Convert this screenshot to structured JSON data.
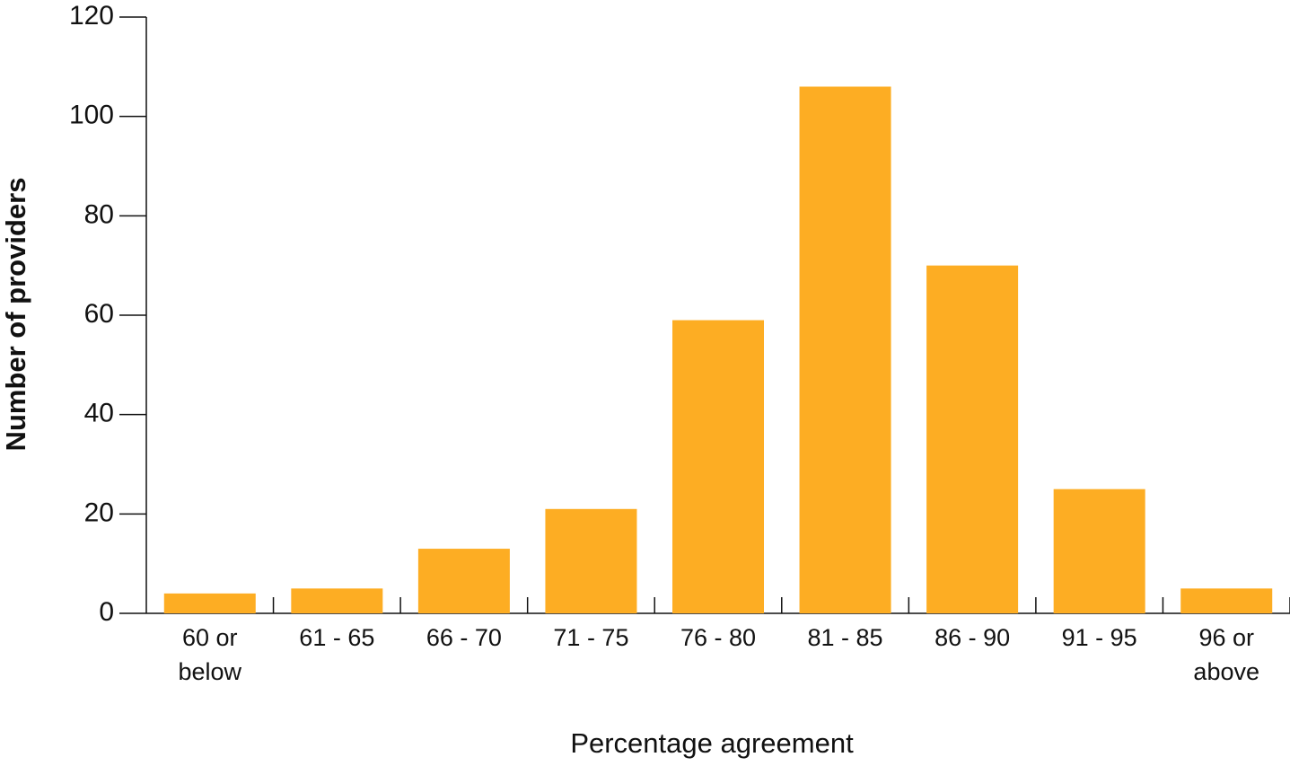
{
  "chart_data": {
    "type": "bar",
    "x_label": "Percentage agreement",
    "y_label": "Number of providers",
    "categories": [
      "60 or below",
      "61 - 65",
      "66 - 70",
      "71 - 75",
      "76 - 80",
      "81 - 85",
      "86 - 90",
      "91 - 95",
      "96 or above"
    ],
    "values": [
      4,
      5,
      13,
      21,
      59,
      106,
      70,
      25,
      5
    ],
    "color": "#fdad23",
    "ylim": [
      0,
      120
    ],
    "yticks": [
      0,
      20,
      40,
      60,
      80,
      100,
      120
    ],
    "grid": false
  }
}
